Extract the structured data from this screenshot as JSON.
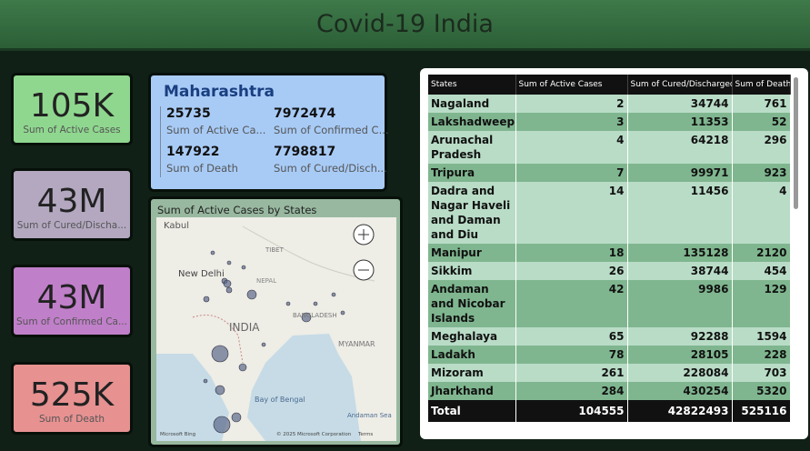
{
  "header": {
    "title": "Covid-19 India"
  },
  "kpis": [
    {
      "value": "105K",
      "label": "Sum of Active Cases"
    },
    {
      "value": "43M",
      "label": "Sum of Cured/Discha..."
    },
    {
      "value": "43M",
      "label": "Sum of Confirmed Ca..."
    },
    {
      "value": "525K",
      "label": "Sum of Death"
    }
  ],
  "state_card": {
    "state": "Maharashtra",
    "items": [
      {
        "value": 25735,
        "label": "Sum of Active Ca..."
      },
      {
        "value": 7972474,
        "label": "Sum of Confirmed C..."
      },
      {
        "value": 147922,
        "label": "Sum of Death"
      },
      {
        "value": 7798817,
        "label": "Sum of Cured/Disch..."
      }
    ]
  },
  "map": {
    "title": "Sum of Active Cases by States",
    "labels": [
      "Kabul",
      "TIBET",
      "New Delhi",
      "NEPAL",
      "INDIA",
      "BANGLADESH",
      "MYANMAR",
      "Bay of Bengal",
      "Andaman Sea"
    ],
    "footer": [
      "Microsoft Bing",
      "© 2025 Microsoft Corporation",
      "Terms"
    ]
  },
  "table": {
    "headers": [
      "States",
      "Sum of Active Cases",
      "Sum of Cured/Discharged",
      "Sum of Death"
    ],
    "rows": [
      [
        "Nagaland",
        2,
        34744,
        761
      ],
      [
        "Lakshadweep",
        3,
        11353,
        52
      ],
      [
        "Arunachal Pradesh",
        4,
        64218,
        296
      ],
      [
        "Tripura",
        7,
        99971,
        923
      ],
      [
        "Dadra and Nagar Haveli and Daman and Diu",
        14,
        11456,
        4
      ],
      [
        "Manipur",
        18,
        135128,
        2120
      ],
      [
        "Sikkim",
        26,
        38744,
        454
      ],
      [
        "Andaman and Nicobar Islands",
        42,
        9986,
        129
      ],
      [
        "Meghalaya",
        65,
        92288,
        1594
      ],
      [
        "Ladakh",
        78,
        28105,
        228
      ],
      [
        "Mizoram",
        261,
        228084,
        703
      ],
      [
        "Jharkhand",
        284,
        430254,
        5320
      ]
    ],
    "total": [
      "Total",
      104555,
      42822493,
      525116
    ]
  }
}
